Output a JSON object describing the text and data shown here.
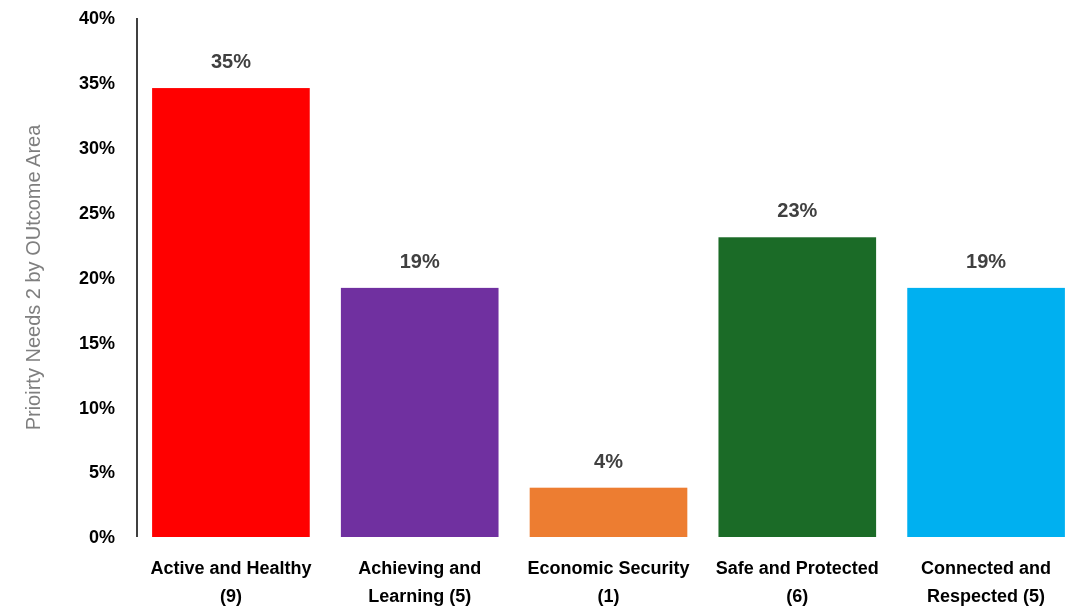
{
  "chart_data": {
    "type": "bar",
    "ylabel": "Prioirty Needs 2 by OUtcome Area",
    "categories": [
      "Active and Healthy\n(9)",
      "Achieving and\nLearning (5)",
      "Economic Security\n(1)",
      "Safe and Protected\n(6)",
      "Connected and\nRespected (5)"
    ],
    "values": [
      34.6,
      19.2,
      3.8,
      23.1,
      19.2
    ],
    "colors": [
      "#ff0000",
      "#7030a0",
      "#ed7d31",
      "#1b6b27",
      "#00b0f0"
    ],
    "value_labels": [
      "35%",
      "19%",
      "4%",
      "23%",
      "19%"
    ],
    "ylim": [
      0,
      40
    ],
    "yticks": [
      {
        "value": 0,
        "label": "0%"
      },
      {
        "value": 5,
        "label": "5%"
      },
      {
        "value": 10,
        "label": "10%"
      },
      {
        "value": 15,
        "label": "15%"
      },
      {
        "value": 20,
        "label": "20%"
      },
      {
        "value": 25,
        "label": "25%"
      },
      {
        "value": 30,
        "label": "30%"
      },
      {
        "value": 35,
        "label": "35%"
      },
      {
        "value": 40,
        "label": "40%"
      }
    ],
    "grid": false
  }
}
